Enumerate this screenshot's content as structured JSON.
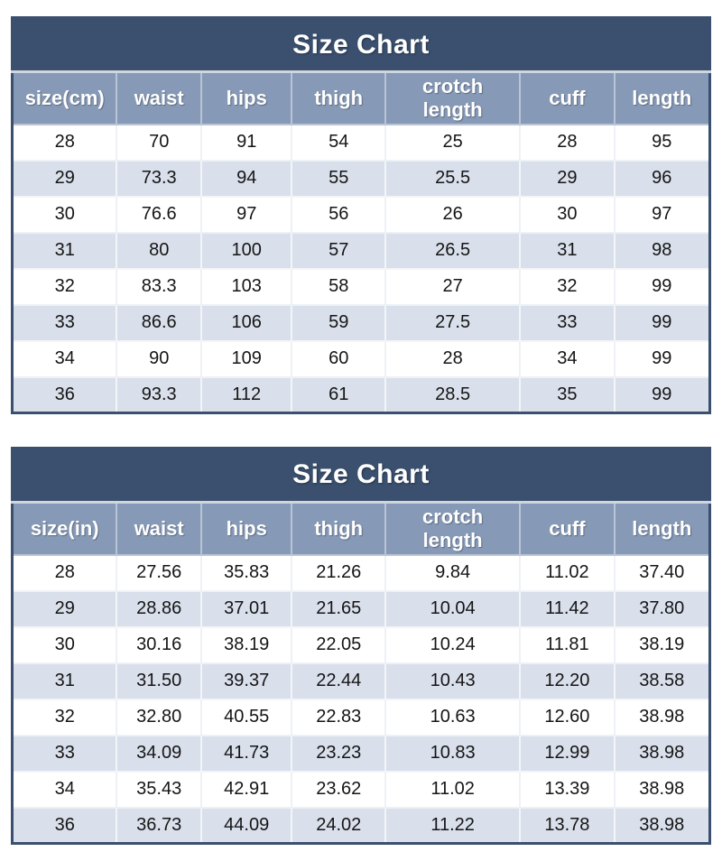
{
  "page": {
    "background": "#ffffff"
  },
  "colors": {
    "title_bg": "#3a506e",
    "title_text": "#ffffff",
    "header_bg": "#8699b6",
    "header_text": "#ffffff",
    "row_even_bg": "#ffffff",
    "row_odd_bg": "#d9dfeb",
    "cell_text": "#151515",
    "table_border": "#3a506e"
  },
  "chart_data": [
    {
      "type": "table",
      "title": "Size Chart",
      "unit": "cm",
      "columns": [
        "size(cm)",
        "waist",
        "hips",
        "thigh",
        "crotch length",
        "cuff",
        "length"
      ],
      "rows": [
        [
          "28",
          "70",
          "91",
          "54",
          "25",
          "28",
          "95"
        ],
        [
          "29",
          "73.3",
          "94",
          "55",
          "25.5",
          "29",
          "96"
        ],
        [
          "30",
          "76.6",
          "97",
          "56",
          "26",
          "30",
          "97"
        ],
        [
          "31",
          "80",
          "100",
          "57",
          "26.5",
          "31",
          "98"
        ],
        [
          "32",
          "83.3",
          "103",
          "58",
          "27",
          "32",
          "99"
        ],
        [
          "33",
          "86.6",
          "106",
          "59",
          "27.5",
          "33",
          "99"
        ],
        [
          "34",
          "90",
          "109",
          "60",
          "28",
          "34",
          "99"
        ],
        [
          "36",
          "93.3",
          "112",
          "61",
          "28.5",
          "35",
          "99"
        ]
      ]
    },
    {
      "type": "table",
      "title": "Size Chart",
      "unit": "in",
      "columns": [
        "size(in)",
        "waist",
        "hips",
        "thigh",
        "crotch length",
        "cuff",
        "length"
      ],
      "rows": [
        [
          "28",
          "27.56",
          "35.83",
          "21.26",
          "9.84",
          "11.02",
          "37.40"
        ],
        [
          "29",
          "28.86",
          "37.01",
          "21.65",
          "10.04",
          "11.42",
          "37.80"
        ],
        [
          "30",
          "30.16",
          "38.19",
          "22.05",
          "10.24",
          "11.81",
          "38.19"
        ],
        [
          "31",
          "31.50",
          "39.37",
          "22.44",
          "10.43",
          "12.20",
          "38.58"
        ],
        [
          "32",
          "32.80",
          "40.55",
          "22.83",
          "10.63",
          "12.60",
          "38.98"
        ],
        [
          "33",
          "34.09",
          "41.73",
          "23.23",
          "10.83",
          "12.99",
          "38.98"
        ],
        [
          "34",
          "35.43",
          "42.91",
          "23.62",
          "11.02",
          "13.39",
          "38.98"
        ],
        [
          "36",
          "36.73",
          "44.09",
          "24.02",
          "11.22",
          "13.78",
          "38.98"
        ]
      ]
    }
  ]
}
